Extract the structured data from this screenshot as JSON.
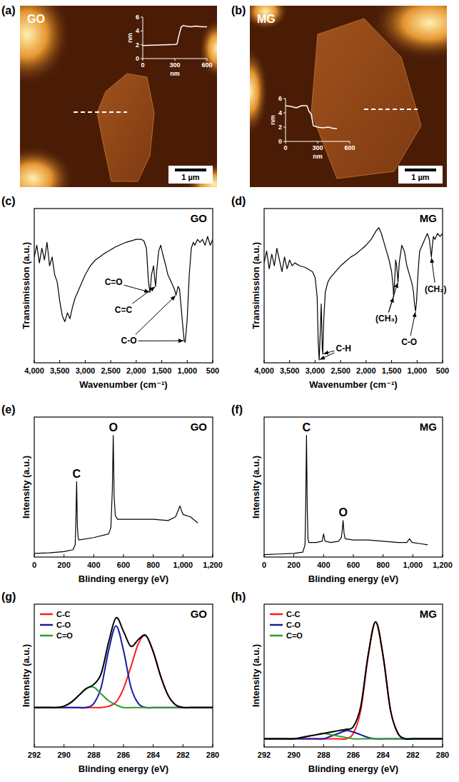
{
  "chart_data": [
    {
      "type": "image",
      "panel": "(a)",
      "title": "GO",
      "scale_bar": "1 µm",
      "inset": {
        "type": "line",
        "x_label": "nm",
        "y_label": "nm",
        "xlim": [
          0,
          600
        ],
        "xticks": [
          0,
          300,
          600
        ],
        "ylim": [
          0,
          6
        ],
        "yticks": [
          0,
          2,
          4,
          6
        ],
        "x": [
          0,
          100,
          200,
          300,
          320,
          340,
          360,
          380,
          400,
          450,
          500,
          550,
          600
        ],
        "series": [
          {
            "color": "#ffffff",
            "values": [
              1.9,
              1.95,
              2.0,
              2.05,
              2.1,
              3.5,
              4.6,
              4.8,
              4.7,
              4.6,
              4.7,
              4.6,
              4.6
            ]
          }
        ]
      }
    },
    {
      "type": "image",
      "panel": "(b)",
      "title": "MG",
      "scale_bar": "1 µm",
      "inset": {
        "type": "line",
        "x_label": "nm",
        "y_label": "nm",
        "xlim": [
          0,
          600
        ],
        "xticks": [
          0,
          300,
          600
        ],
        "ylim": [
          0,
          6
        ],
        "yticks": [
          0,
          2,
          4,
          6
        ],
        "x": [
          0,
          50,
          100,
          150,
          200,
          220,
          240,
          260,
          300,
          350,
          400,
          450,
          480
        ],
        "series": [
          {
            "color": "#ffffff",
            "values": [
              5.0,
              4.9,
              4.7,
              5.0,
              5.0,
              4.2,
              3.8,
              2.2,
              2.0,
              1.9,
              2.0,
              1.8,
              1.8
            ]
          }
        ]
      }
    },
    {
      "type": "line",
      "panel": "(c)",
      "title": "GO",
      "x_label": "Wavenumber (cm⁻¹)",
      "y_label": "Transimission (a.u.)",
      "tick_labels": "x",
      "xlim": [
        4000,
        500
      ],
      "xticks": [
        {
          "value": 4000,
          "label": "4,000"
        },
        {
          "value": 3500,
          "label": "3,500"
        },
        {
          "value": 3000,
          "label": "3,000"
        },
        {
          "value": 2500,
          "label": "2,500"
        },
        {
          "value": 2000,
          "label": "2,000"
        },
        {
          "value": 1500,
          "label": "1,500"
        },
        {
          "value": 1000,
          "label": "1,000"
        },
        500
      ],
      "ylim": [
        0,
        1.05
      ],
      "x": [
        4000,
        3950,
        3900,
        3850,
        3800,
        3750,
        3700,
        3650,
        3600,
        3550,
        3500,
        3450,
        3400,
        3350,
        3300,
        3250,
        3200,
        3100,
        3000,
        2900,
        2800,
        2600,
        2400,
        2200,
        2000,
        1900,
        1850,
        1800,
        1760,
        1730,
        1700,
        1660,
        1640,
        1620,
        1600,
        1560,
        1520,
        1480,
        1420,
        1380,
        1300,
        1250,
        1220,
        1180,
        1150,
        1100,
        1060,
        1040,
        1000,
        960,
        920,
        880,
        850,
        800,
        750,
        700,
        650,
        600,
        550,
        500
      ],
      "series": [
        {
          "color": "#000000",
          "values": [
            0.72,
            0.8,
            0.68,
            0.78,
            0.7,
            0.82,
            0.66,
            0.72,
            0.6,
            0.55,
            0.42,
            0.32,
            0.28,
            0.34,
            0.3,
            0.38,
            0.44,
            0.52,
            0.6,
            0.66,
            0.7,
            0.75,
            0.79,
            0.82,
            0.84,
            0.84,
            0.83,
            0.78,
            0.55,
            0.48,
            0.6,
            0.66,
            0.58,
            0.52,
            0.62,
            0.76,
            0.8,
            0.74,
            0.66,
            0.6,
            0.54,
            0.5,
            0.46,
            0.52,
            0.5,
            0.3,
            0.15,
            0.14,
            0.3,
            0.6,
            0.78,
            0.82,
            0.8,
            0.84,
            0.82,
            0.84,
            0.8,
            0.86,
            0.8,
            0.84
          ]
        }
      ],
      "annotations": [
        {
          "text": "C=O",
          "targets": [
            [
              1730,
              0.48
            ]
          ]
        },
        {
          "text": "C=C",
          "targets": [
            [
              1620,
              0.52
            ]
          ]
        },
        {
          "text": "C-O",
          "targets": [
            [
              1220,
              0.46
            ],
            [
              1060,
              0.15
            ]
          ]
        }
      ]
    },
    {
      "type": "line",
      "panel": "(d)",
      "title": "MG",
      "x_label": "Wavenumber (cm⁻¹)",
      "y_label": "Transimission (a.u.)",
      "tick_labels": "x",
      "xlim": [
        4000,
        500
      ],
      "xticks": [
        {
          "value": 4000,
          "label": "4,000"
        },
        {
          "value": 3500,
          "label": "3,500"
        },
        {
          "value": 3000,
          "label": "3,000"
        },
        {
          "value": 2500,
          "label": "2,500"
        },
        {
          "value": 2000,
          "label": "2,000"
        },
        {
          "value": 1500,
          "label": "1,500"
        },
        {
          "value": 1000,
          "label": "1,000"
        },
        500
      ],
      "ylim": [
        0,
        1.05
      ],
      "x": [
        4000,
        3950,
        3900,
        3850,
        3800,
        3750,
        3700,
        3650,
        3600,
        3550,
        3500,
        3450,
        3400,
        3300,
        3200,
        3100,
        3050,
        3000,
        2960,
        2940,
        2920,
        2900,
        2880,
        2860,
        2850,
        2830,
        2800,
        2750,
        2700,
        2600,
        2500,
        2400,
        2300,
        2200,
        2100,
        2000,
        1900,
        1800,
        1750,
        1700,
        1650,
        1600,
        1550,
        1500,
        1470,
        1460,
        1440,
        1420,
        1400,
        1375,
        1350,
        1300,
        1250,
        1200,
        1150,
        1100,
        1070,
        1050,
        1030,
        1010,
        980,
        950,
        900,
        850,
        800,
        760,
        740,
        720,
        700,
        680,
        650,
        600,
        550,
        500
      ],
      "series": [
        {
          "color": "#000000",
          "values": [
            0.68,
            0.76,
            0.64,
            0.74,
            0.66,
            0.78,
            0.7,
            0.62,
            0.72,
            0.64,
            0.7,
            0.66,
            0.68,
            0.66,
            0.65,
            0.63,
            0.62,
            0.58,
            0.45,
            0.15,
            0.02,
            0.2,
            0.4,
            0.1,
            0.06,
            0.3,
            0.48,
            0.55,
            0.58,
            0.62,
            0.66,
            0.69,
            0.72,
            0.74,
            0.77,
            0.8,
            0.84,
            0.9,
            0.92,
            0.88,
            0.82,
            0.76,
            0.7,
            0.62,
            0.52,
            0.45,
            0.56,
            0.7,
            0.66,
            0.55,
            0.68,
            0.8,
            0.76,
            0.66,
            0.6,
            0.54,
            0.48,
            0.4,
            0.35,
            0.42,
            0.62,
            0.76,
            0.8,
            0.84,
            0.88,
            0.84,
            0.78,
            0.72,
            0.8,
            0.86,
            0.84,
            0.88,
            0.86,
            0.88
          ]
        }
      ],
      "annotations": [
        {
          "text": "C-H",
          "targets": [
            [
              2920,
              0.02
            ],
            [
              2850,
              0.06
            ]
          ]
        },
        {
          "text": "(CH₃)",
          "targets": [
            [
              1460,
              0.45
            ],
            [
              1375,
              0.55
            ]
          ]
        },
        {
          "text": "C-O",
          "targets": [
            [
              1030,
              0.35
            ]
          ]
        },
        {
          "text": "(CH₂)",
          "targets": [
            [
              720,
              0.72
            ]
          ]
        }
      ]
    },
    {
      "type": "line",
      "panel": "(e)",
      "title": "GO",
      "x_label": "Blinding energy (eV)",
      "y_label": "Intensity (a.u.)",
      "tick_labels": "x",
      "xlim": [
        0,
        1200
      ],
      "xticks": [
        0,
        200,
        400,
        600,
        800,
        {
          "value": 1000,
          "label": "1,000"
        },
        {
          "value": 1200,
          "label": "1,200"
        }
      ],
      "ylim": [
        0,
        1.15
      ],
      "x": [
        0,
        100,
        200,
        260,
        275,
        280,
        285,
        290,
        295,
        300,
        400,
        500,
        515,
        525,
        531,
        537,
        545,
        560,
        600,
        700,
        800,
        900,
        950,
        970,
        980,
        990,
        1000,
        1050,
        1100
      ],
      "series": [
        {
          "color": "#000000",
          "values": [
            0.03,
            0.035,
            0.045,
            0.06,
            0.1,
            0.3,
            0.62,
            0.25,
            0.16,
            0.14,
            0.16,
            0.19,
            0.24,
            0.55,
            1,
            0.5,
            0.34,
            0.31,
            0.31,
            0.31,
            0.31,
            0.3,
            0.33,
            0.39,
            0.42,
            0.38,
            0.35,
            0.33,
            0.28
          ]
        }
      ],
      "annotations": [
        {
          "text": "C",
          "targets": [
            [
              285,
              0.62
            ]
          ]
        },
        {
          "text": "O",
          "targets": [
            [
              531,
              1
            ]
          ]
        }
      ]
    },
    {
      "type": "line",
      "panel": "(f)",
      "title": "MG",
      "x_label": "Blinding energy (eV)",
      "y_label": "Intensity (a.u.)",
      "tick_labels": "x",
      "xlim": [
        0,
        1200
      ],
      "xticks": [
        0,
        200,
        400,
        600,
        800,
        {
          "value": 1000,
          "label": "1,000"
        },
        {
          "value": 1200,
          "label": "1,200"
        }
      ],
      "ylim": [
        0,
        1.15
      ],
      "x": [
        0,
        100,
        200,
        260,
        275,
        280,
        285,
        290,
        295,
        300,
        350,
        390,
        400,
        410,
        450,
        500,
        520,
        525,
        531,
        537,
        545,
        600,
        700,
        800,
        900,
        960,
        978,
        995,
        1050,
        1100
      ],
      "series": [
        {
          "color": "#000000",
          "values": [
            0.02,
            0.025,
            0.03,
            0.04,
            0.1,
            0.45,
            1,
            0.4,
            0.15,
            0.12,
            0.12,
            0.13,
            0.19,
            0.13,
            0.12,
            0.13,
            0.16,
            0.22,
            0.3,
            0.2,
            0.15,
            0.14,
            0.14,
            0.13,
            0.12,
            0.12,
            0.15,
            0.12,
            0.11,
            0.1
          ]
        }
      ],
      "annotations": [
        {
          "text": "C",
          "targets": [
            [
              285,
              1
            ]
          ]
        },
        {
          "text": "O",
          "targets": [
            [
              531,
              0.3
            ]
          ]
        }
      ]
    },
    {
      "type": "line",
      "panel": "(g)",
      "title": "GO",
      "x_label": "Blinding energy (eV)",
      "y_label": "Intensity (a.u.)",
      "tick_labels": "x",
      "legend": "upper left",
      "xlim": [
        292,
        280
      ],
      "xticks": [
        292,
        290,
        288,
        286,
        284,
        282,
        280
      ],
      "ylim": [
        0,
        1.05
      ],
      "x": [
        292,
        291.5,
        291,
        290.5,
        290,
        289.5,
        289,
        288.5,
        288,
        287.5,
        287,
        286.5,
        286,
        285.5,
        285,
        284.5,
        284,
        283.5,
        283,
        282.5,
        282,
        281.5,
        281,
        280.5,
        280
      ],
      "series": [
        {
          "name": "C-C",
          "color": "#ff1a1a",
          "values": [
            0.29,
            0.29,
            0.29,
            0.29,
            0.29,
            0.29,
            0.29,
            0.29,
            0.29,
            0.29,
            0.3,
            0.33,
            0.43,
            0.59,
            0.76,
            0.82,
            0.7,
            0.52,
            0.38,
            0.31,
            0.29,
            0.29,
            0.29,
            0.29,
            0.29
          ]
        },
        {
          "name": "C-O",
          "color": "#1a1aa6",
          "values": [
            0.29,
            0.29,
            0.29,
            0.29,
            0.29,
            0.29,
            0.29,
            0.29,
            0.32,
            0.44,
            0.71,
            0.89,
            0.71,
            0.44,
            0.32,
            0.29,
            0.29,
            0.29,
            0.29,
            0.29,
            0.29,
            0.29,
            0.29,
            0.29,
            0.29
          ]
        },
        {
          "name": "C=O",
          "color": "#2e9e2e",
          "values": [
            0.29,
            0.29,
            0.29,
            0.29,
            0.3,
            0.33,
            0.38,
            0.43,
            0.44,
            0.39,
            0.34,
            0.31,
            0.29,
            0.29,
            0.29,
            0.29,
            0.29,
            0.29,
            0.29,
            0.29,
            0.29,
            0.29,
            0.29,
            0.29,
            0.29
          ]
        },
        {
          "color": "#000000",
          "values": [
            0.29,
            0.29,
            0.29,
            0.29,
            0.3,
            0.33,
            0.38,
            0.43,
            0.46,
            0.54,
            0.77,
            0.95,
            0.85,
            0.74,
            0.79,
            0.82,
            0.7,
            0.52,
            0.38,
            0.31,
            0.29,
            0.29,
            0.29,
            0.29,
            0.29
          ]
        }
      ]
    },
    {
      "type": "line",
      "panel": "(h)",
      "title": "MG",
      "x_label": "Blinding energy (eV)",
      "y_label": "Intensity (a.u.)",
      "tick_labels": "x",
      "legend": "upper left",
      "xlim": [
        292,
        280
      ],
      "xticks": [
        292,
        290,
        288,
        286,
        284,
        282,
        280
      ],
      "ylim": [
        0,
        1.05
      ],
      "x": [
        292,
        291.5,
        291,
        290.5,
        290,
        289.5,
        289,
        288.5,
        288,
        287.5,
        287,
        286.5,
        286,
        285.5,
        285,
        284.5,
        284,
        283.5,
        283,
        282.5,
        282,
        281.5,
        281,
        280.5,
        280
      ],
      "series": [
        {
          "name": "C-C",
          "color": "#ff1a1a",
          "values": [
            0.06,
            0.06,
            0.06,
            0.06,
            0.06,
            0.06,
            0.06,
            0.06,
            0.06,
            0.06,
            0.06,
            0.06,
            0.1,
            0.27,
            0.67,
            0.92,
            0.67,
            0.27,
            0.1,
            0.06,
            0.06,
            0.06,
            0.06,
            0.06,
            0.06
          ]
        },
        {
          "name": "C-O",
          "color": "#1a1aa6",
          "values": [
            0.06,
            0.06,
            0.06,
            0.06,
            0.06,
            0.06,
            0.06,
            0.06,
            0.06,
            0.08,
            0.1,
            0.12,
            0.11,
            0.09,
            0.07,
            0.06,
            0.06,
            0.06,
            0.06,
            0.06,
            0.06,
            0.06,
            0.06,
            0.06,
            0.06
          ]
        },
        {
          "name": "C=O",
          "color": "#2e9e2e",
          "values": [
            0.06,
            0.06,
            0.06,
            0.06,
            0.06,
            0.07,
            0.08,
            0.09,
            0.1,
            0.09,
            0.08,
            0.07,
            0.06,
            0.06,
            0.06,
            0.06,
            0.06,
            0.06,
            0.06,
            0.06,
            0.06,
            0.06,
            0.06,
            0.06,
            0.06
          ]
        },
        {
          "color": "#000000",
          "values": [
            0.06,
            0.06,
            0.06,
            0.06,
            0.06,
            0.07,
            0.08,
            0.09,
            0.1,
            0.11,
            0.12,
            0.13,
            0.15,
            0.3,
            0.68,
            0.92,
            0.67,
            0.27,
            0.1,
            0.06,
            0.06,
            0.06,
            0.06,
            0.06,
            0.06
          ]
        }
      ]
    }
  ]
}
